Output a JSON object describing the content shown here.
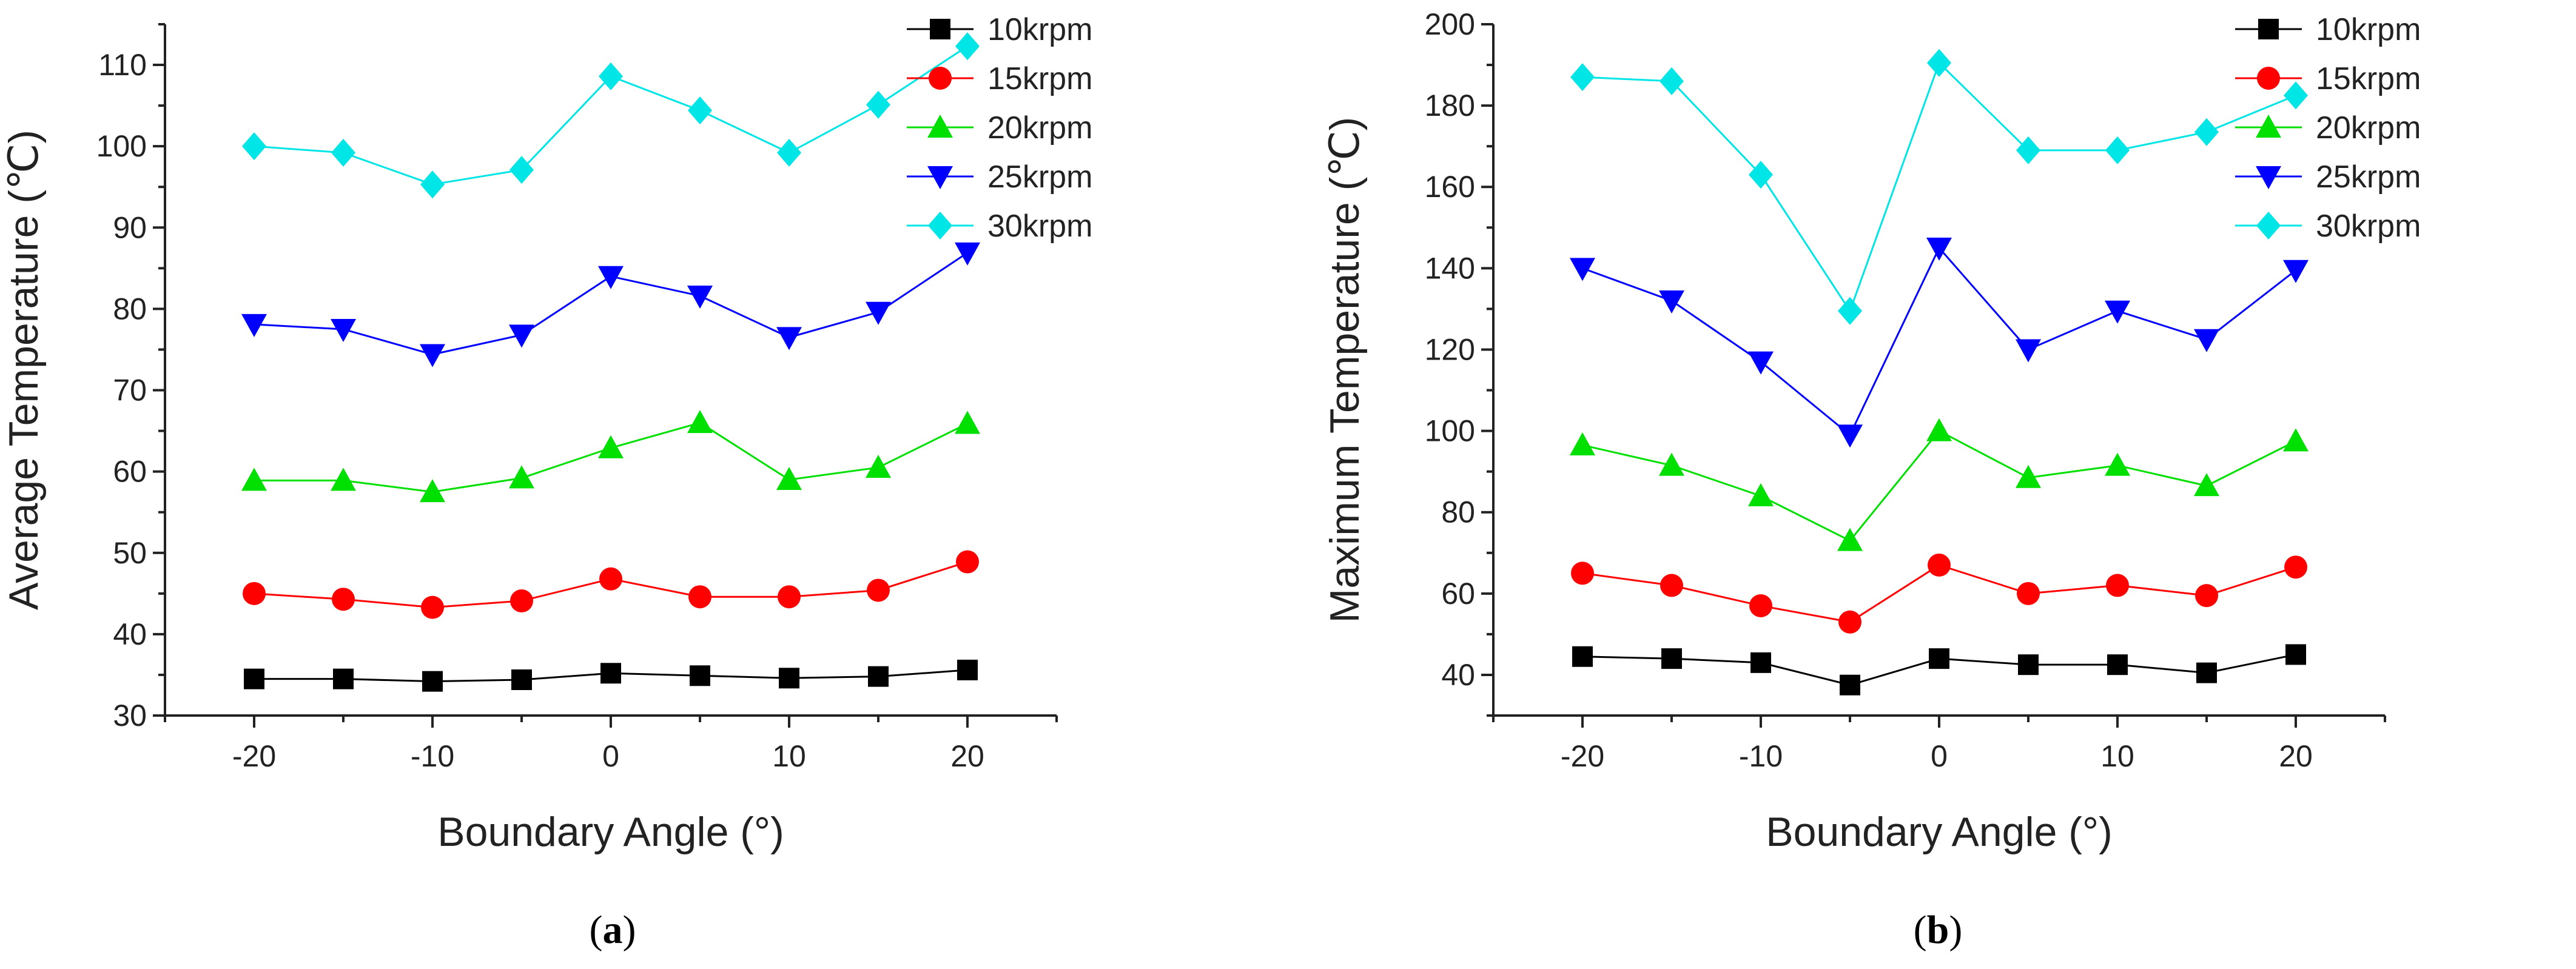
{
  "chart_data": [
    {
      "type": "line",
      "panel": "a",
      "caption_open": "(",
      "caption_letter": "a",
      "caption_close": ")",
      "xlabel": "Boundary Angle (°)",
      "ylabel": "Average Temperature (℃)",
      "x": [
        -20,
        -15,
        -10,
        -5,
        0,
        5,
        10,
        15,
        20
      ],
      "xlim": [
        -25,
        25
      ],
      "ylim": [
        30,
        115
      ],
      "xticks": [
        -20,
        -10,
        0,
        10,
        20
      ],
      "xtick_labels": [
        "-20",
        "-10",
        "0",
        "10",
        "20"
      ],
      "yticks": [
        30,
        40,
        50,
        60,
        70,
        80,
        90,
        100,
        110
      ],
      "ytick_labels": [
        "30",
        "40",
        "50",
        "60",
        "70",
        "80",
        "90",
        "100",
        "110"
      ],
      "legend_position": "top-right",
      "series": [
        {
          "name": "10krpm",
          "color": "#000000",
          "marker": "square",
          "values": [
            34.5,
            34.5,
            34.2,
            34.4,
            35.2,
            34.9,
            34.6,
            34.8,
            35.6
          ]
        },
        {
          "name": "15krpm",
          "color": "#ff0000",
          "marker": "circle",
          "values": [
            45.0,
            44.3,
            43.3,
            44.1,
            46.8,
            44.6,
            44.6,
            45.4,
            48.9
          ]
        },
        {
          "name": "20krpm",
          "color": "#00e000",
          "marker": "triangle-up",
          "values": [
            58.9,
            58.9,
            57.5,
            59.2,
            62.9,
            66.0,
            59.0,
            60.5,
            65.9
          ]
        },
        {
          "name": "25krpm",
          "color": "#0000ff",
          "marker": "triangle-down",
          "values": [
            78.1,
            77.5,
            74.4,
            76.8,
            84.0,
            81.6,
            76.5,
            79.6,
            86.9
          ]
        },
        {
          "name": "30krpm",
          "color": "#00e5e5",
          "marker": "diamond",
          "values": [
            100.0,
            99.2,
            95.3,
            97.1,
            108.6,
            104.4,
            99.2,
            105.1,
            112.3
          ]
        }
      ]
    },
    {
      "type": "line",
      "panel": "b",
      "caption_open": "(",
      "caption_letter": "b",
      "caption_close": ")",
      "xlabel": "Boundary Angle (°)",
      "ylabel": "Maximum Temperature (℃)",
      "x": [
        -20,
        -15,
        -10,
        -5,
        0,
        5,
        10,
        15,
        20
      ],
      "xlim": [
        -25,
        25
      ],
      "ylim": [
        30,
        200
      ],
      "xticks": [
        -20,
        -10,
        0,
        10,
        20
      ],
      "xtick_labels": [
        "-20",
        "-10",
        "0",
        "10",
        "20"
      ],
      "yticks": [
        40,
        60,
        80,
        100,
        120,
        140,
        160,
        180,
        200
      ],
      "ytick_labels": [
        "40",
        "60",
        "80",
        "100",
        "120",
        "140",
        "160",
        "180",
        "200"
      ],
      "legend_position": "top-right",
      "series": [
        {
          "name": "10krpm",
          "color": "#000000",
          "marker": "square",
          "values": [
            44.5,
            44.0,
            43.0,
            37.5,
            44.0,
            42.5,
            42.5,
            40.5,
            45.0
          ]
        },
        {
          "name": "15krpm",
          "color": "#ff0000",
          "marker": "circle",
          "values": [
            65.0,
            62.0,
            57.0,
            53.0,
            67.0,
            60.0,
            62.0,
            59.5,
            66.5
          ]
        },
        {
          "name": "20krpm",
          "color": "#00e000",
          "marker": "triangle-up",
          "values": [
            96.5,
            91.5,
            84.0,
            73.0,
            100.0,
            88.5,
            91.5,
            86.5,
            97.5
          ]
        },
        {
          "name": "25krpm",
          "color": "#0000ff",
          "marker": "triangle-down",
          "values": [
            140.0,
            132.0,
            117.0,
            99.0,
            145.0,
            120.0,
            129.5,
            122.5,
            139.5
          ]
        },
        {
          "name": "30krpm",
          "color": "#00e5e5",
          "marker": "diamond",
          "values": [
            187.0,
            186.0,
            163.0,
            129.5,
            190.5,
            169.0,
            169.0,
            173.5,
            182.5
          ]
        }
      ]
    }
  ]
}
